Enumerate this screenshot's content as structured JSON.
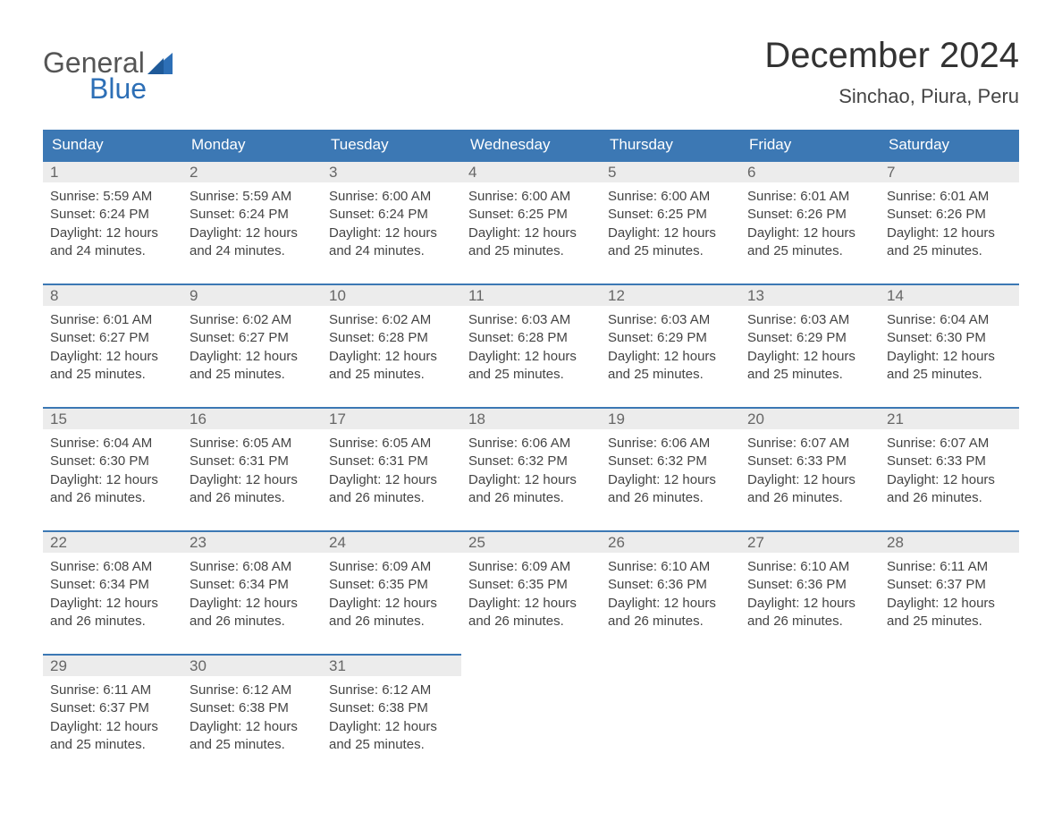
{
  "logo": {
    "word1": "General",
    "word2": "Blue",
    "sail_color": "#2d6fb6",
    "general_color": "#555555",
    "blue_color": "#2d6fb6"
  },
  "title": "December 2024",
  "location": "Sinchao, Piura, Peru",
  "colors": {
    "header_bg": "#3c78b4",
    "header_text": "#ffffff",
    "row_top_border": "#3c78b4",
    "daynum_bg": "#ececec",
    "daynum_text": "#666666",
    "body_text": "#444444",
    "page_bg": "#ffffff"
  },
  "typography": {
    "title_fontsize": 40,
    "location_fontsize": 22,
    "dayhead_fontsize": 17,
    "daynum_fontsize": 17,
    "body_fontsize": 15,
    "font_family": "Arial"
  },
  "day_headers": [
    "Sunday",
    "Monday",
    "Tuesday",
    "Wednesday",
    "Thursday",
    "Friday",
    "Saturday"
  ],
  "weeks": [
    [
      {
        "n": "1",
        "sunrise": "Sunrise: 5:59 AM",
        "sunset": "Sunset: 6:24 PM",
        "d1": "Daylight: 12 hours",
        "d2": "and 24 minutes."
      },
      {
        "n": "2",
        "sunrise": "Sunrise: 5:59 AM",
        "sunset": "Sunset: 6:24 PM",
        "d1": "Daylight: 12 hours",
        "d2": "and 24 minutes."
      },
      {
        "n": "3",
        "sunrise": "Sunrise: 6:00 AM",
        "sunset": "Sunset: 6:24 PM",
        "d1": "Daylight: 12 hours",
        "d2": "and 24 minutes."
      },
      {
        "n": "4",
        "sunrise": "Sunrise: 6:00 AM",
        "sunset": "Sunset: 6:25 PM",
        "d1": "Daylight: 12 hours",
        "d2": "and 25 minutes."
      },
      {
        "n": "5",
        "sunrise": "Sunrise: 6:00 AM",
        "sunset": "Sunset: 6:25 PM",
        "d1": "Daylight: 12 hours",
        "d2": "and 25 minutes."
      },
      {
        "n": "6",
        "sunrise": "Sunrise: 6:01 AM",
        "sunset": "Sunset: 6:26 PM",
        "d1": "Daylight: 12 hours",
        "d2": "and 25 minutes."
      },
      {
        "n": "7",
        "sunrise": "Sunrise: 6:01 AM",
        "sunset": "Sunset: 6:26 PM",
        "d1": "Daylight: 12 hours",
        "d2": "and 25 minutes."
      }
    ],
    [
      {
        "n": "8",
        "sunrise": "Sunrise: 6:01 AM",
        "sunset": "Sunset: 6:27 PM",
        "d1": "Daylight: 12 hours",
        "d2": "and 25 minutes."
      },
      {
        "n": "9",
        "sunrise": "Sunrise: 6:02 AM",
        "sunset": "Sunset: 6:27 PM",
        "d1": "Daylight: 12 hours",
        "d2": "and 25 minutes."
      },
      {
        "n": "10",
        "sunrise": "Sunrise: 6:02 AM",
        "sunset": "Sunset: 6:28 PM",
        "d1": "Daylight: 12 hours",
        "d2": "and 25 minutes."
      },
      {
        "n": "11",
        "sunrise": "Sunrise: 6:03 AM",
        "sunset": "Sunset: 6:28 PM",
        "d1": "Daylight: 12 hours",
        "d2": "and 25 minutes."
      },
      {
        "n": "12",
        "sunrise": "Sunrise: 6:03 AM",
        "sunset": "Sunset: 6:29 PM",
        "d1": "Daylight: 12 hours",
        "d2": "and 25 minutes."
      },
      {
        "n": "13",
        "sunrise": "Sunrise: 6:03 AM",
        "sunset": "Sunset: 6:29 PM",
        "d1": "Daylight: 12 hours",
        "d2": "and 25 minutes."
      },
      {
        "n": "14",
        "sunrise": "Sunrise: 6:04 AM",
        "sunset": "Sunset: 6:30 PM",
        "d1": "Daylight: 12 hours",
        "d2": "and 25 minutes."
      }
    ],
    [
      {
        "n": "15",
        "sunrise": "Sunrise: 6:04 AM",
        "sunset": "Sunset: 6:30 PM",
        "d1": "Daylight: 12 hours",
        "d2": "and 26 minutes."
      },
      {
        "n": "16",
        "sunrise": "Sunrise: 6:05 AM",
        "sunset": "Sunset: 6:31 PM",
        "d1": "Daylight: 12 hours",
        "d2": "and 26 minutes."
      },
      {
        "n": "17",
        "sunrise": "Sunrise: 6:05 AM",
        "sunset": "Sunset: 6:31 PM",
        "d1": "Daylight: 12 hours",
        "d2": "and 26 minutes."
      },
      {
        "n": "18",
        "sunrise": "Sunrise: 6:06 AM",
        "sunset": "Sunset: 6:32 PM",
        "d1": "Daylight: 12 hours",
        "d2": "and 26 minutes."
      },
      {
        "n": "19",
        "sunrise": "Sunrise: 6:06 AM",
        "sunset": "Sunset: 6:32 PM",
        "d1": "Daylight: 12 hours",
        "d2": "and 26 minutes."
      },
      {
        "n": "20",
        "sunrise": "Sunrise: 6:07 AM",
        "sunset": "Sunset: 6:33 PM",
        "d1": "Daylight: 12 hours",
        "d2": "and 26 minutes."
      },
      {
        "n": "21",
        "sunrise": "Sunrise: 6:07 AM",
        "sunset": "Sunset: 6:33 PM",
        "d1": "Daylight: 12 hours",
        "d2": "and 26 minutes."
      }
    ],
    [
      {
        "n": "22",
        "sunrise": "Sunrise: 6:08 AM",
        "sunset": "Sunset: 6:34 PM",
        "d1": "Daylight: 12 hours",
        "d2": "and 26 minutes."
      },
      {
        "n": "23",
        "sunrise": "Sunrise: 6:08 AM",
        "sunset": "Sunset: 6:34 PM",
        "d1": "Daylight: 12 hours",
        "d2": "and 26 minutes."
      },
      {
        "n": "24",
        "sunrise": "Sunrise: 6:09 AM",
        "sunset": "Sunset: 6:35 PM",
        "d1": "Daylight: 12 hours",
        "d2": "and 26 minutes."
      },
      {
        "n": "25",
        "sunrise": "Sunrise: 6:09 AM",
        "sunset": "Sunset: 6:35 PM",
        "d1": "Daylight: 12 hours",
        "d2": "and 26 minutes."
      },
      {
        "n": "26",
        "sunrise": "Sunrise: 6:10 AM",
        "sunset": "Sunset: 6:36 PM",
        "d1": "Daylight: 12 hours",
        "d2": "and 26 minutes."
      },
      {
        "n": "27",
        "sunrise": "Sunrise: 6:10 AM",
        "sunset": "Sunset: 6:36 PM",
        "d1": "Daylight: 12 hours",
        "d2": "and 26 minutes."
      },
      {
        "n": "28",
        "sunrise": "Sunrise: 6:11 AM",
        "sunset": "Sunset: 6:37 PM",
        "d1": "Daylight: 12 hours",
        "d2": "and 25 minutes."
      }
    ],
    [
      {
        "n": "29",
        "sunrise": "Sunrise: 6:11 AM",
        "sunset": "Sunset: 6:37 PM",
        "d1": "Daylight: 12 hours",
        "d2": "and 25 minutes."
      },
      {
        "n": "30",
        "sunrise": "Sunrise: 6:12 AM",
        "sunset": "Sunset: 6:38 PM",
        "d1": "Daylight: 12 hours",
        "d2": "and 25 minutes."
      },
      {
        "n": "31",
        "sunrise": "Sunrise: 6:12 AM",
        "sunset": "Sunset: 6:38 PM",
        "d1": "Daylight: 12 hours",
        "d2": "and 25 minutes."
      },
      null,
      null,
      null,
      null
    ]
  ]
}
